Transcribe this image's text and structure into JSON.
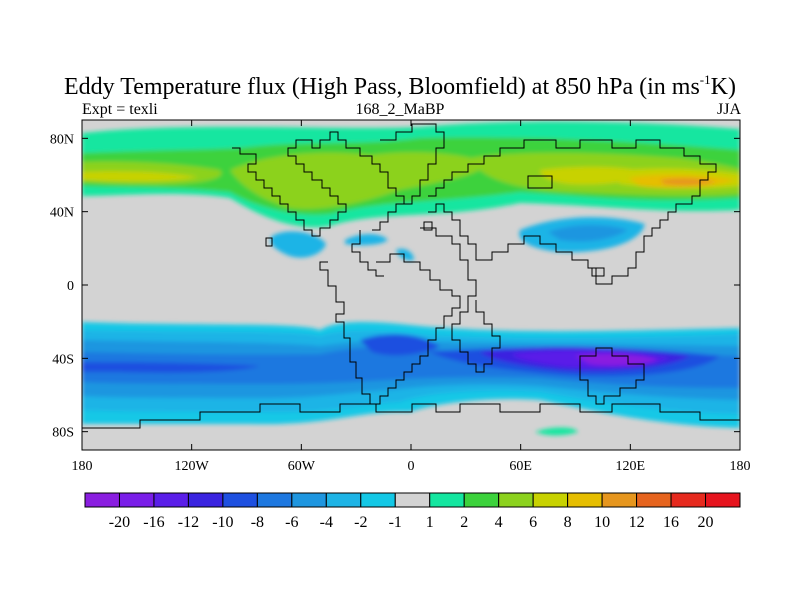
{
  "title": {
    "main": "Eddy Temperature flux (High Pass, Bloomfield) at 850 hPa (in ms",
    "sup": "-1",
    "tail": "K)"
  },
  "subtitle": {
    "left": "Expt = texli",
    "center": "168_2_MaBP",
    "right": "JJA"
  },
  "map": {
    "background_color": "#d3d3d3",
    "lon_range": [
      -180,
      180
    ],
    "lat_range": [
      -90,
      90
    ],
    "x_ticks": [
      {
        "lon": -180,
        "label": "180"
      },
      {
        "lon": -120,
        "label": "120W"
      },
      {
        "lon": -60,
        "label": "60W"
      },
      {
        "lon": 0,
        "label": "0"
      },
      {
        "lon": 60,
        "label": "60E"
      },
      {
        "lon": 120,
        "label": "120E"
      },
      {
        "lon": 180,
        "label": "180"
      }
    ],
    "y_ticks": [
      {
        "lat": 80,
        "label": "80N"
      },
      {
        "lat": 40,
        "label": "40N"
      },
      {
        "lat": 0,
        "label": "0"
      },
      {
        "lat": -40,
        "label": "40S"
      },
      {
        "lat": -80,
        "label": "80S"
      }
    ]
  },
  "colorbar": {
    "labels": [
      "-20",
      "-16",
      "-12",
      "-10",
      "-8",
      "-6",
      "-4",
      "-2",
      "-1",
      "1",
      "2",
      "4",
      "6",
      "8",
      "10",
      "12",
      "16",
      "20"
    ],
    "colors": [
      "#8a1ee0",
      "#7a1ee8",
      "#5a1ee8",
      "#3a24e0",
      "#1e50e0",
      "#1e78e0",
      "#1e96e0",
      "#1eb4e6",
      "#14c8e6",
      "#d3d3d3",
      "#14e6a0",
      "#3cd23c",
      "#8cd21e",
      "#c8d200",
      "#e6be00",
      "#e6961e",
      "#e6641e",
      "#e62a1e",
      "#e6141e"
    ]
  }
}
